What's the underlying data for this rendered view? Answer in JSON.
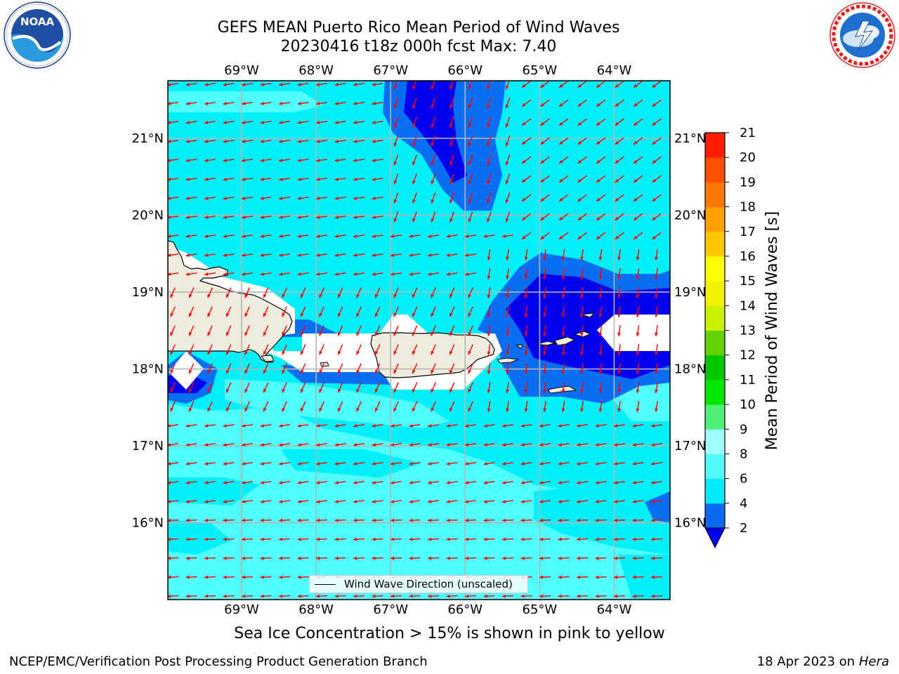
{
  "title": {
    "line1": "GEFS MEAN Puerto Rico Mean Period of Wind Waves",
    "line2": "20230416 t18z 000h fcst   Max: 7.40"
  },
  "logos": {
    "left": {
      "name": "noaa-logo",
      "text": "NOAA",
      "ring_text": "NATIONAL OCEANIC AND ATMOSPHERIC ADMINISTRATION · U.S. DEPARTMENT OF COMMERCE"
    },
    "right": {
      "name": "nws-logo",
      "ring_text": "NATIONAL WEATHER SERVICE"
    }
  },
  "map": {
    "extent": {
      "lon_min": -69.99,
      "lon_max": -63.25,
      "lat_min": 15.0,
      "lat_max": 21.75
    },
    "lon_ticks": [
      "69°W",
      "68°W",
      "67°W",
      "66°W",
      "65°W",
      "64°W"
    ],
    "lat_ticks": [
      "21°N",
      "20°N",
      "19°N",
      "18°N",
      "17°N",
      "16°N"
    ],
    "lon_values": [
      -69,
      -68,
      -67,
      -66,
      -65,
      -64
    ],
    "lat_values": [
      21,
      20,
      19,
      18,
      17,
      16
    ],
    "arrow_color": "#ff0000",
    "land_color": "#eeecdc",
    "grid_color": "#b4b4b4",
    "legend_label": "Wind Wave Direction (unscaled)"
  },
  "colorbar": {
    "label": "Mean Period of Wind Waves [s]",
    "levels": [
      2,
      4,
      6,
      8,
      9,
      10,
      11,
      12,
      13,
      14,
      15,
      16,
      17,
      18,
      19,
      20,
      21
    ],
    "tick_labels": [
      "2",
      "4",
      "6",
      "8",
      "9",
      "10",
      "11",
      "12",
      "13",
      "14",
      "15",
      "16",
      "17",
      "18",
      "19",
      "20",
      "21"
    ],
    "colors": [
      "#0a69f0",
      "#00ebfa",
      "#50fafa",
      "#a0ffff",
      "#50f078",
      "#00e600",
      "#00c800",
      "#64d200",
      "#c8f000",
      "#f0f000",
      "#ffff00",
      "#ffc800",
      "#ffa000",
      "#ff7800",
      "#ff5000",
      "#ff1e00"
    ],
    "under_color": "#0000ee"
  },
  "field_colors": {
    "4-6": "#00f0fa",
    "6-8": "#50ffff",
    "2-4": "#0a6ef5",
    "lt2": "#0000ee",
    "missing": "#ffffff"
  },
  "subtitle": "Sea Ice Concentration > 15% is shown in pink to yellow",
  "footer": {
    "left": "NCEP/EMC/Verification Post Processing Product Generation Branch",
    "date": "18 Apr 2023 on ",
    "machine": "Hera"
  }
}
